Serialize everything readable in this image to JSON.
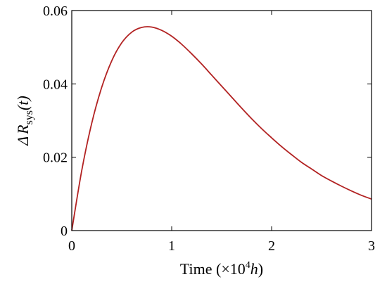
{
  "chart_data": {
    "type": "line",
    "xlabel": {
      "prefix": "Time (×10",
      "exponent": "4",
      "unit": "h",
      "suffix": ")"
    },
    "ylabel": {
      "delta": "Δ",
      "symbol": "R",
      "subscript": "sys",
      "argument": "(t)"
    },
    "xlim": [
      0,
      3
    ],
    "ylim": [
      0,
      0.06
    ],
    "x_ticks": [
      0,
      1,
      2,
      3
    ],
    "x_tick_labels": [
      "0",
      "1",
      "2",
      "3"
    ],
    "y_ticks": [
      0,
      0.02,
      0.04,
      0.06
    ],
    "y_tick_labels": [
      "0",
      "0.02",
      "0.04",
      "0.06"
    ],
    "grid": false,
    "legend": "none",
    "series": [
      {
        "color": "#b22222",
        "x": [
          0,
          0.1,
          0.2,
          0.3,
          0.4,
          0.5,
          0.6,
          0.7,
          0.8,
          0.9,
          1.0,
          1.1,
          1.2,
          1.3,
          1.4,
          1.5,
          1.6,
          1.7,
          1.8,
          1.9,
          2.0,
          2.1,
          2.2,
          2.3,
          2.4,
          2.5,
          2.6,
          2.7,
          2.8,
          2.9,
          3.0
        ],
        "values": [
          0,
          0.0164,
          0.0293,
          0.0391,
          0.0463,
          0.0512,
          0.0541,
          0.0554,
          0.0555,
          0.0546,
          0.053,
          0.0508,
          0.0482,
          0.0454,
          0.0424,
          0.0394,
          0.0364,
          0.0334,
          0.0305,
          0.0278,
          0.0253,
          0.0229,
          0.0207,
          0.0186,
          0.0168,
          0.015,
          0.0135,
          0.0121,
          0.0108,
          0.0096,
          0.0086
        ]
      }
    ]
  }
}
